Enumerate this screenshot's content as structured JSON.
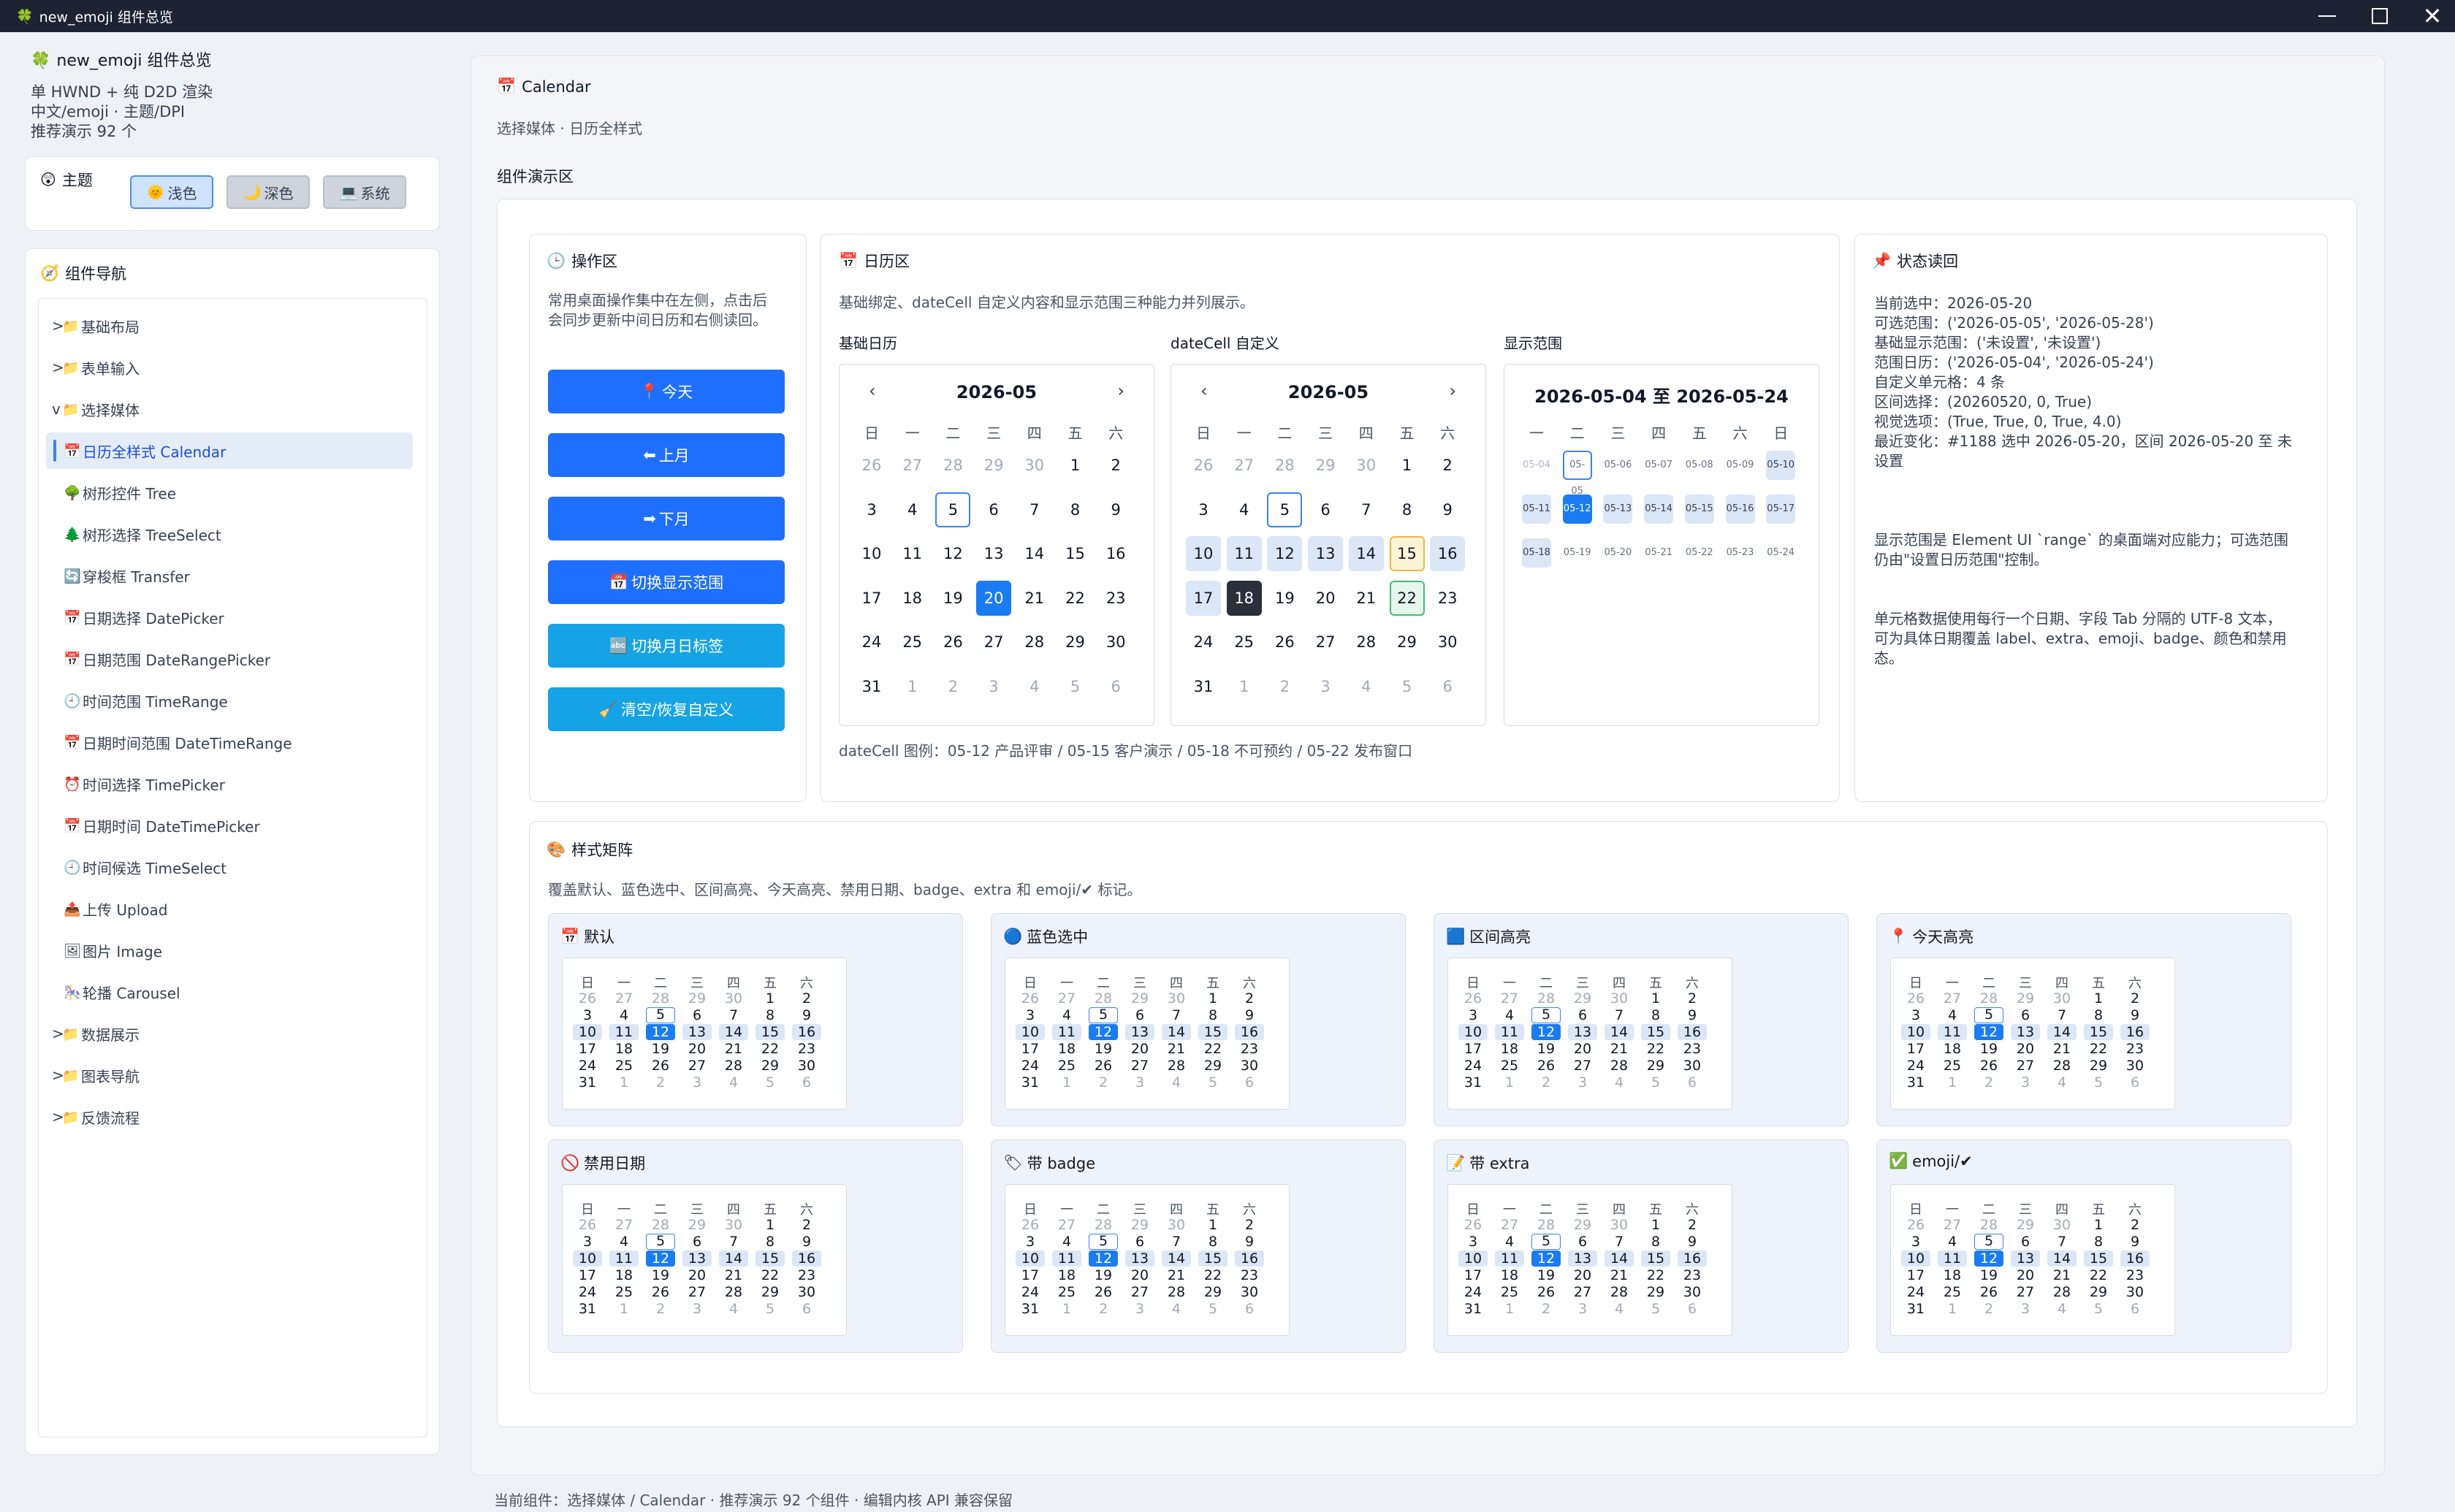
{
  "window": {
    "title": "new_emoji 组件总览",
    "min": "",
    "max": "",
    "close": "✕"
  },
  "sidebar": {
    "title": "new_emoji 组件总览",
    "info": [
      "单 HWND + 纯 D2D 渲染",
      "中文/emoji · 主题/DPI",
      "推荐演示 92 个"
    ],
    "theme": {
      "title": "主题",
      "buttons": [
        {
          "icon": "🌞",
          "label": "浅色"
        },
        {
          "icon": "🌙",
          "label": "深色"
        },
        {
          "icon": "💻",
          "label": "系统"
        }
      ]
    },
    "nav_title": "组件导航",
    "nav": [
      {
        "pre": ">",
        "icon": "📁",
        "label": "基础布局"
      },
      {
        "pre": ">",
        "icon": "📁",
        "label": "表单输入"
      },
      {
        "pre": "v",
        "icon": "📁",
        "label": "选择媒体"
      },
      {
        "pre": "",
        "icon": "📅",
        "label": "日历全样式 Calendar"
      },
      {
        "pre": "",
        "icon": "🌳",
        "label": "树形控件 Tree"
      },
      {
        "pre": "",
        "icon": "🌲",
        "label": "树形选择 TreeSelect"
      },
      {
        "pre": "",
        "icon": "🔄",
        "label": "穿梭框 Transfer"
      },
      {
        "pre": "",
        "icon": "📅",
        "label": "日期选择 DatePicker"
      },
      {
        "pre": "",
        "icon": "📅",
        "label": "日期范围 DateRangePicker"
      },
      {
        "pre": "",
        "icon": "🕘",
        "label": "时间范围 TimeRange"
      },
      {
        "pre": "",
        "icon": "📅",
        "label": "日期时间范围 DateTimeRange"
      },
      {
        "pre": "",
        "icon": "⏰",
        "label": "时间选择 TimePicker"
      },
      {
        "pre": "",
        "icon": "📅",
        "label": "日期时间 DateTimePicker"
      },
      {
        "pre": "",
        "icon": "🕘",
        "label": "时间候选 TimeSelect"
      },
      {
        "pre": "",
        "icon": "📤",
        "label": "上传 Upload"
      },
      {
        "pre": "",
        "icon": "🖼",
        "label": "图片 Image"
      },
      {
        "pre": "",
        "icon": "🎠",
        "label": "轮播 Carousel"
      },
      {
        "pre": ">",
        "icon": "📁",
        "label": "数据展示"
      },
      {
        "pre": ">",
        "icon": "📁",
        "label": "图表导航"
      },
      {
        "pre": ">",
        "icon": "📁",
        "label": "反馈流程"
      }
    ]
  },
  "main": {
    "title": "Calendar",
    "subtitle": "选择媒体 · 日历全样式",
    "demo_title": "组件演示区",
    "ops": {
      "title": "操作区",
      "desc": [
        "常用桌面操作集中在左侧，点击后",
        "会同步更新中间日历和右侧读回。"
      ],
      "buttons": [
        {
          "icon": "📍",
          "label": "今天"
        },
        {
          "icon": "⬅",
          "label": "上月"
        },
        {
          "icon": "➡",
          "label": "下月"
        },
        {
          "icon": "📅",
          "label": "切换显示范围"
        },
        {
          "icon": "🔤",
          "label": "切换月日标签"
        },
        {
          "icon": "🧹",
          "label": "清空/恢复自定义"
        }
      ]
    },
    "calendar": {
      "title": "日历区",
      "desc": "基础绑定、dateCell 自定义内容和显示范围三种能力并列展示。",
      "basic_label": "基础日历",
      "custom_label": "dateCell 自定义",
      "range_label": "显示范围",
      "month": "2026-05",
      "prev": "‹",
      "next": "›",
      "range_header": "2026-05-04 至 2026-05-24",
      "weekdays": [
        "日",
        "一",
        "二",
        "三",
        "四",
        "五",
        "六"
      ],
      "range_weekdays": [
        "一",
        "二",
        "三",
        "四",
        "五",
        "六",
        "日"
      ],
      "legend": "dateCell 图例：05-12 产品评审 / 05-15 客户演示 / 05-18 不可预约 / 05-22 发布窗口"
    },
    "state": {
      "title": "状态读回",
      "lines": [
        "当前选中：2026-05-20",
        "可选范围：('2026-05-05', '2026-05-28')",
        "基础显示范围：('未设置', '未设置')",
        "范围日历：('2026-05-04', '2026-05-24')",
        "自定义单元格：4 条",
        "区间选择：(20260520, 0, True)",
        "视觉选项：(True, True, 0, True, 4.0)",
        "最近变化：#1188 选中 2026-05-20，区间 2026-05-20 至 未",
        "设置",
        "",
        "",
        "",
        "显示范围是 Element UI `range` 的桌面端对应能力；可选范围",
        "仍由\"设置日历范围\"控制。",
        "",
        "",
        "单元格数据使用每行一个日期、字段 Tab 分隔的 UTF-8 文本，",
        "可为具体日期覆盖 label、extra、emoji、badge、颜色和禁用",
        "态。"
      ]
    },
    "matrix": {
      "title": "样式矩阵",
      "desc": "覆盖默认、蓝色选中、区间高亮、今天高亮、禁用日期、badge、extra 和 emoji/✔ 标记。",
      "cards": [
        {
          "icon": "📅",
          "label": "默认"
        },
        {
          "icon": "🔵",
          "label": "蓝色选中"
        },
        {
          "icon": "🟦",
          "label": "区间高亮"
        },
        {
          "icon": "📍",
          "label": "今天高亮"
        },
        {
          "icon": "🚫",
          "label": "禁用日期"
        },
        {
          "icon": "🏷",
          "label": "带 badge"
        },
        {
          "icon": "📝",
          "label": "带 extra"
        },
        {
          "icon": "✅",
          "label": "emoji/✔"
        }
      ]
    }
  },
  "footer": "当前组件：选择媒体 / Calendar · 推荐演示 92 个组件 · 编辑内核 API 兼容保留",
  "colors": {
    "accent": "#1f6fff",
    "cyan": "#16a3e6",
    "selected": "#1a7cf0",
    "range": "#dbe6f6"
  }
}
